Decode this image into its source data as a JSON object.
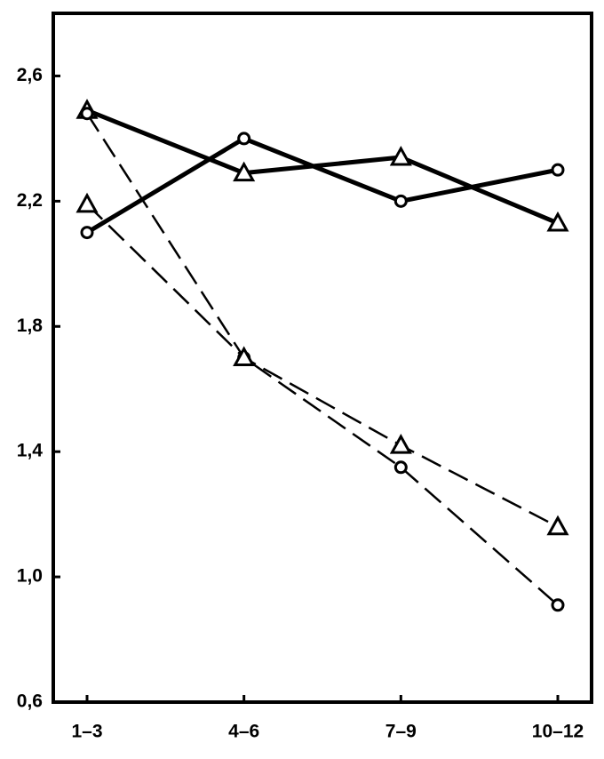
{
  "chart_data": {
    "type": "line",
    "categories": [
      "1–3",
      "4–6",
      "7–9",
      "10–12"
    ],
    "series": [
      {
        "color": "#000000",
        "dashed": false,
        "marker": "circle",
        "values": [
          2.1,
          2.4,
          2.2,
          2.3
        ]
      },
      {
        "color": "#000000",
        "dashed": false,
        "marker": "triangle",
        "values": [
          2.49,
          2.29,
          2.34,
          2.13
        ]
      },
      {
        "color": "#000000",
        "dashed": true,
        "marker": "circle",
        "values": [
          2.48,
          1.7,
          1.35,
          0.91
        ]
      },
      {
        "color": "#000000",
        "dashed": true,
        "marker": "triangle",
        "values": [
          2.19,
          1.7,
          1.42,
          1.16
        ]
      }
    ],
    "ylim": [
      0.6,
      2.8
    ],
    "yticks": [
      {
        "value": 0.6,
        "label": "0,6"
      },
      {
        "value": 1.0,
        "label": "1,0"
      },
      {
        "value": 1.4,
        "label": "1,4"
      },
      {
        "value": 1.8,
        "label": "1,8"
      },
      {
        "value": 2.2,
        "label": "2,2"
      },
      {
        "value": 2.6,
        "label": "2,6"
      }
    ],
    "grid": false
  }
}
